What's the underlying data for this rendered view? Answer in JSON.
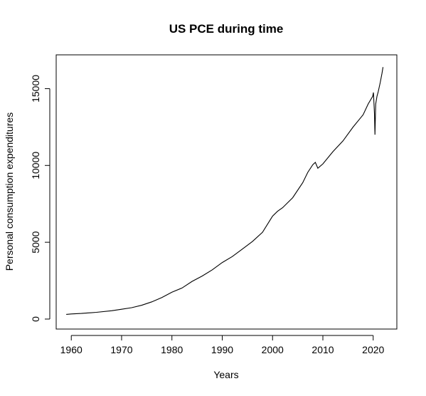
{
  "chart_data": {
    "type": "line",
    "title": "US PCE during time",
    "xlabel": "Years",
    "ylabel": "Personal consumption expenditures",
    "xlim": [
      1957.0,
      2024.7
    ],
    "ylim": [
      -650,
      17200
    ],
    "x_ticks": [
      1960,
      1970,
      1980,
      1990,
      2000,
      2010,
      2020
    ],
    "y_ticks": [
      0,
      5000,
      10000,
      15000
    ],
    "series": [
      {
        "color": "#000000",
        "x": [
          1959.0,
          1960,
          1962,
          1965,
          1968,
          1970,
          1972,
          1974,
          1976,
          1978,
          1980,
          1982,
          1984,
          1986,
          1988,
          1990,
          1992,
          1994,
          1996,
          1998,
          2000,
          2001,
          2002,
          2004,
          2006,
          2007,
          2008,
          2008.5,
          2009,
          2010,
          2012,
          2014,
          2016,
          2018,
          2019,
          2019.9,
          2020.05,
          2020.25,
          2020.35,
          2020.5,
          2020.75,
          2021,
          2021.4,
          2021.75,
          2021.95
        ],
        "y": [
          305,
          330,
          365,
          440,
          540,
          640,
          740,
          900,
          1120,
          1400,
          1750,
          2020,
          2450,
          2800,
          3200,
          3680,
          4070,
          4560,
          5050,
          5650,
          6700,
          7020,
          7250,
          7900,
          8880,
          9550,
          10050,
          10200,
          9820,
          10100,
          10900,
          11600,
          12500,
          13300,
          14000,
          14500,
          14750,
          13400,
          12000,
          14000,
          14500,
          14800,
          15400,
          16000,
          16400
        ]
      }
    ]
  }
}
